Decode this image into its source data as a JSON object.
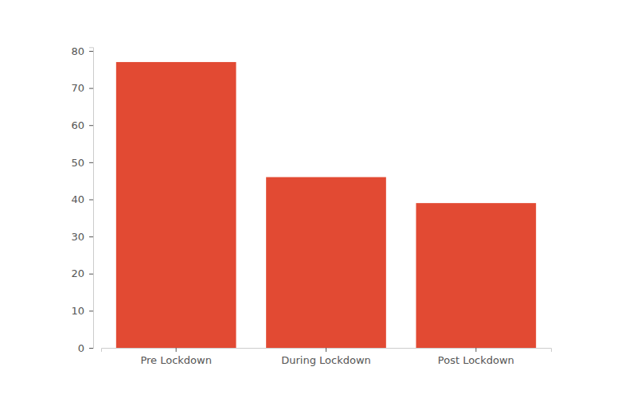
{
  "chart_data": {
    "type": "bar",
    "categories": [
      "Pre Lockdown",
      "During Lockdown",
      "Post Lockdown"
    ],
    "values": [
      77,
      46,
      39
    ],
    "color": "#e24a33",
    "ylim": [
      0,
      81
    ],
    "yticks": [
      0,
      10,
      20,
      30,
      40,
      50,
      60,
      70,
      80
    ],
    "grid": false
  }
}
